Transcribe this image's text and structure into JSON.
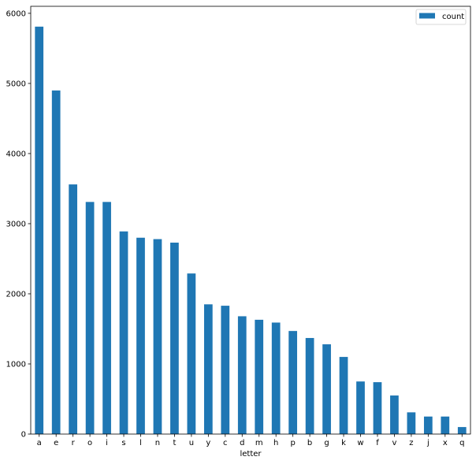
{
  "chart_data": {
    "type": "bar",
    "xlabel": "letter",
    "ylabel": "",
    "categories": [
      "a",
      "e",
      "r",
      "o",
      "i",
      "s",
      "l",
      "n",
      "t",
      "u",
      "y",
      "c",
      "d",
      "m",
      "h",
      "p",
      "b",
      "g",
      "k",
      "w",
      "f",
      "v",
      "z",
      "j",
      "x",
      "q"
    ],
    "series": [
      {
        "name": "count",
        "color": "#1f77b4",
        "values": [
          5810,
          4900,
          3560,
          3310,
          3310,
          2890,
          2800,
          2780,
          2730,
          2290,
          1850,
          1830,
          1680,
          1630,
          1590,
          1470,
          1370,
          1280,
          1100,
          750,
          740,
          550,
          310,
          250,
          250,
          100
        ]
      }
    ],
    "yticks": [
      0,
      1000,
      2000,
      3000,
      4000,
      5000,
      6000
    ],
    "ylim": [
      0,
      6100
    ],
    "grid": false,
    "legend_position": "top-right"
  }
}
